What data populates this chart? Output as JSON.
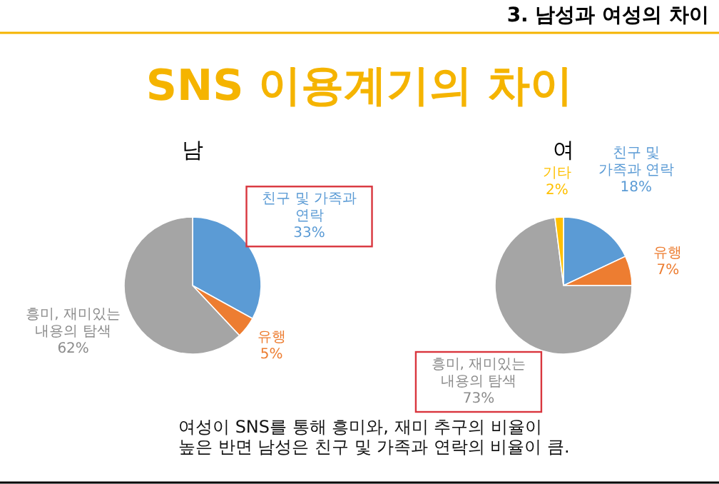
{
  "chart_data": [
    {
      "type": "pie",
      "title": "남",
      "categories": [
        "친구 및 가족과 연락",
        "유행",
        "흥미, 재미있는 내용의 탐색"
      ],
      "values": [
        33,
        5,
        62
      ],
      "value_labels": [
        "33%",
        "5%",
        "62%"
      ],
      "colors": [
        "#5b9bd5",
        "#ed7d31",
        "#a5a5a5"
      ],
      "annotations": [
        "3. 남성과 여성의 차이",
        "SNS 이용계기의 차이",
        "여성이 SNS를 통해 흥미와, 재미 추구의 비율이 높은 반면 남성은 친구 및 가족과 연락의 비율이 큼."
      ]
    },
    {
      "type": "pie",
      "title": "여",
      "categories": [
        "친구 및 가족과 연락",
        "유행",
        "흥미, 재미있는 내용의 탐색",
        "기타"
      ],
      "values": [
        18,
        7,
        73,
        2
      ],
      "value_labels": [
        "18%",
        "7%",
        "73%",
        "2%"
      ],
      "colors": [
        "#5b9bd5",
        "#ed7d31",
        "#a5a5a5",
        "#ffc000"
      ]
    }
  ]
}
